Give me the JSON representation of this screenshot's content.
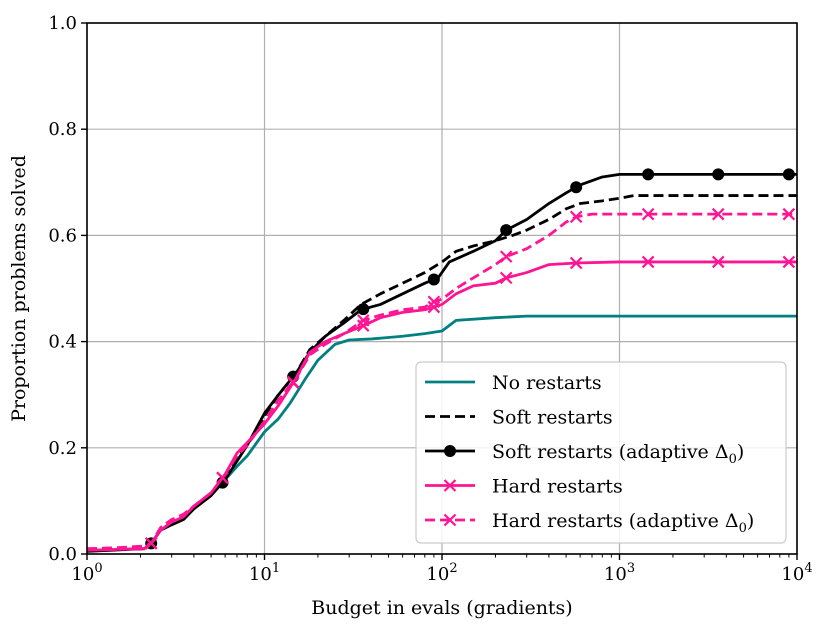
{
  "chart_data": {
    "type": "line",
    "title": "",
    "xlabel": "Budget in evals (gradients)",
    "ylabel": "Proportion problems solved",
    "xscale": "log",
    "xlim": [
      1,
      10000
    ],
    "ylim": [
      0,
      1
    ],
    "grid": true,
    "legend_position": "lower-right",
    "x_ticks": [
      {
        "base": "10",
        "exp": "0",
        "value": 1
      },
      {
        "base": "10",
        "exp": "1",
        "value": 10
      },
      {
        "base": "10",
        "exp": "2",
        "value": 100
      },
      {
        "base": "10",
        "exp": "3",
        "value": 1000
      },
      {
        "base": "10",
        "exp": "4",
        "value": 10000
      }
    ],
    "y_ticks": [
      "0.0",
      "0.2",
      "0.4",
      "0.6",
      "0.8",
      "1.0"
    ],
    "series": [
      {
        "name": "No restarts",
        "legend_text": "No restarts",
        "legend_sub": "",
        "legend_tail": "",
        "color": "#008080",
        "dash": "solid",
        "marker": "none",
        "points": [
          [
            1,
            0.007
          ],
          [
            2.1,
            0.01
          ],
          [
            2.3,
            0.02
          ],
          [
            2.6,
            0.045
          ],
          [
            3,
            0.06
          ],
          [
            3.5,
            0.07
          ],
          [
            4,
            0.09
          ],
          [
            5,
            0.115
          ],
          [
            6,
            0.14
          ],
          [
            7,
            0.165
          ],
          [
            8,
            0.185
          ],
          [
            10,
            0.23
          ],
          [
            12,
            0.255
          ],
          [
            14,
            0.285
          ],
          [
            17,
            0.33
          ],
          [
            20,
            0.365
          ],
          [
            25,
            0.395
          ],
          [
            30,
            0.403
          ],
          [
            40,
            0.405
          ],
          [
            60,
            0.41
          ],
          [
            80,
            0.415
          ],
          [
            100,
            0.42
          ],
          [
            120,
            0.44
          ],
          [
            200,
            0.445
          ],
          [
            300,
            0.448
          ],
          [
            10000,
            0.448
          ]
        ],
        "marker_x": []
      },
      {
        "name": "Soft restarts",
        "legend_text": "Soft restarts",
        "legend_sub": "",
        "legend_tail": "",
        "color": "#000000",
        "dash": "dashed",
        "marker": "none",
        "points": [
          [
            1,
            0.007
          ],
          [
            2.1,
            0.01
          ],
          [
            2.3,
            0.02
          ],
          [
            2.6,
            0.045
          ],
          [
            3,
            0.06
          ],
          [
            3.5,
            0.07
          ],
          [
            4,
            0.09
          ],
          [
            5,
            0.115
          ],
          [
            6,
            0.145
          ],
          [
            7,
            0.18
          ],
          [
            8,
            0.205
          ],
          [
            10,
            0.26
          ],
          [
            12,
            0.3
          ],
          [
            15,
            0.34
          ],
          [
            18,
            0.385
          ],
          [
            22,
            0.41
          ],
          [
            28,
            0.44
          ],
          [
            35,
            0.47
          ],
          [
            45,
            0.49
          ],
          [
            60,
            0.51
          ],
          [
            80,
            0.53
          ],
          [
            100,
            0.55
          ],
          [
            120,
            0.57
          ],
          [
            150,
            0.58
          ],
          [
            200,
            0.59
          ],
          [
            250,
            0.6
          ],
          [
            300,
            0.61
          ],
          [
            400,
            0.63
          ],
          [
            500,
            0.65
          ],
          [
            600,
            0.66
          ],
          [
            800,
            0.665
          ],
          [
            1000,
            0.67
          ],
          [
            1200,
            0.675
          ],
          [
            10000,
            0.675
          ]
        ],
        "marker_x": []
      },
      {
        "name": "Soft restarts (adaptive Δ0)",
        "legend_text": "Soft restarts (adaptive Δ",
        "legend_sub": "0",
        "legend_tail": ")",
        "color": "#000000",
        "dash": "solid",
        "marker": "circle",
        "points": [
          [
            1,
            0.005
          ],
          [
            2.1,
            0.01
          ],
          [
            2.3,
            0.02
          ],
          [
            2.6,
            0.045
          ],
          [
            3,
            0.055
          ],
          [
            3.5,
            0.065
          ],
          [
            4,
            0.085
          ],
          [
            5,
            0.11
          ],
          [
            6,
            0.14
          ],
          [
            7,
            0.175
          ],
          [
            8,
            0.205
          ],
          [
            10,
            0.265
          ],
          [
            12,
            0.3
          ],
          [
            15,
            0.34
          ],
          [
            18,
            0.38
          ],
          [
            22,
            0.41
          ],
          [
            28,
            0.435
          ],
          [
            35,
            0.46
          ],
          [
            45,
            0.47
          ],
          [
            60,
            0.49
          ],
          [
            80,
            0.51
          ],
          [
            95,
            0.52
          ],
          [
            110,
            0.55
          ],
          [
            150,
            0.57
          ],
          [
            200,
            0.59
          ],
          [
            230,
            0.61
          ],
          [
            300,
            0.63
          ],
          [
            400,
            0.66
          ],
          [
            500,
            0.68
          ],
          [
            600,
            0.695
          ],
          [
            800,
            0.71
          ],
          [
            1000,
            0.715
          ],
          [
            10000,
            0.715
          ]
        ],
        "marker_x": [
          2.3,
          5.8,
          14.5,
          36,
          90,
          230,
          570,
          1450,
          3600,
          9000
        ]
      },
      {
        "name": "Hard restarts",
        "legend_text": "Hard restarts",
        "legend_sub": "",
        "legend_tail": "",
        "color": "#ff1493",
        "dash": "solid",
        "marker": "x",
        "points": [
          [
            1,
            0.007
          ],
          [
            2.1,
            0.01
          ],
          [
            2.3,
            0.02
          ],
          [
            2.6,
            0.045
          ],
          [
            3,
            0.06
          ],
          [
            3.5,
            0.07
          ],
          [
            4,
            0.09
          ],
          [
            5,
            0.115
          ],
          [
            6,
            0.15
          ],
          [
            7,
            0.19
          ],
          [
            8,
            0.21
          ],
          [
            10,
            0.245
          ],
          [
            12,
            0.28
          ],
          [
            15,
            0.33
          ],
          [
            18,
            0.38
          ],
          [
            22,
            0.4
          ],
          [
            28,
            0.415
          ],
          [
            36,
            0.43
          ],
          [
            45,
            0.445
          ],
          [
            60,
            0.455
          ],
          [
            80,
            0.46
          ],
          [
            90,
            0.465
          ],
          [
            100,
            0.47
          ],
          [
            120,
            0.49
          ],
          [
            150,
            0.505
          ],
          [
            200,
            0.51
          ],
          [
            230,
            0.52
          ],
          [
            300,
            0.53
          ],
          [
            400,
            0.545
          ],
          [
            570,
            0.548
          ],
          [
            1000,
            0.55
          ],
          [
            10000,
            0.55
          ]
        ],
        "marker_x": [
          2.3,
          5.8,
          14.5,
          36,
          90,
          230,
          570,
          1450,
          3600,
          9000
        ]
      },
      {
        "name": "Hard restarts (adaptive Δ0)",
        "legend_text": "Hard restarts (adaptive Δ",
        "legend_sub": "0",
        "legend_tail": ")",
        "color": "#ff1493",
        "dash": "dashed",
        "marker": "x",
        "points": [
          [
            1,
            0.01
          ],
          [
            1.5,
            0.012
          ],
          [
            2.1,
            0.015
          ],
          [
            2.3,
            0.02
          ],
          [
            2.6,
            0.05
          ],
          [
            3,
            0.065
          ],
          [
            3.5,
            0.075
          ],
          [
            4,
            0.09
          ],
          [
            5,
            0.115
          ],
          [
            6,
            0.15
          ],
          [
            7,
            0.185
          ],
          [
            8,
            0.205
          ],
          [
            10,
            0.25
          ],
          [
            12,
            0.29
          ],
          [
            15,
            0.33
          ],
          [
            18,
            0.375
          ],
          [
            22,
            0.395
          ],
          [
            28,
            0.415
          ],
          [
            36,
            0.44
          ],
          [
            45,
            0.45
          ],
          [
            60,
            0.46
          ],
          [
            80,
            0.465
          ],
          [
            90,
            0.475
          ],
          [
            100,
            0.48
          ],
          [
            120,
            0.5
          ],
          [
            150,
            0.52
          ],
          [
            200,
            0.545
          ],
          [
            230,
            0.56
          ],
          [
            300,
            0.575
          ],
          [
            400,
            0.6
          ],
          [
            500,
            0.625
          ],
          [
            570,
            0.635
          ],
          [
            700,
            0.64
          ],
          [
            10000,
            0.64
          ]
        ],
        "marker_x": [
          2.3,
          5.8,
          14.5,
          36,
          90,
          230,
          570,
          1450,
          3600,
          9000
        ]
      }
    ]
  }
}
